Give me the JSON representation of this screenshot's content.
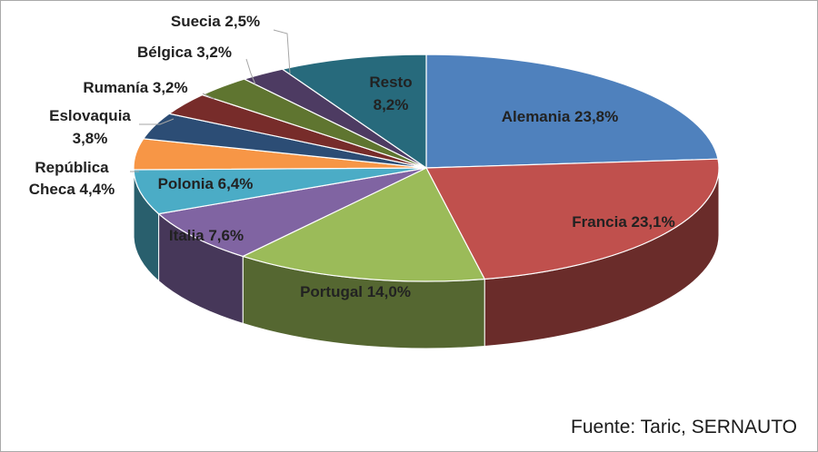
{
  "chart_data": {
    "type": "pie",
    "style": "3d",
    "slices": [
      {
        "name": "Alemania",
        "value": 23.8,
        "label": "Alemania 23,8%",
        "color": "#4F81BD"
      },
      {
        "name": "Francia",
        "value": 23.1,
        "label": "Francia 23,1%",
        "color": "#C0504D"
      },
      {
        "name": "Portugal",
        "value": 14.0,
        "label": "Portugal 14,0%",
        "color": "#9BBB59"
      },
      {
        "name": "Italia",
        "value": 7.6,
        "label": "Italia 7,6%",
        "color": "#8064A2"
      },
      {
        "name": "Polonia",
        "value": 6.4,
        "label": "Polonia 6,4%",
        "color": "#4BACC6"
      },
      {
        "name": "República Checa",
        "value": 4.4,
        "label_lines": [
          "República",
          "Checa 4,4%"
        ],
        "color": "#F79646"
      },
      {
        "name": "Eslovaquia",
        "value": 3.8,
        "label_lines": [
          "Eslovaquia",
          "3,8%"
        ],
        "color": "#2C4D75"
      },
      {
        "name": "Rumanía",
        "value": 3.2,
        "label": "Rumanía 3,2%",
        "color": "#772C2A"
      },
      {
        "name": "Bélgica",
        "value": 3.2,
        "label": "Bélgica 3,2%",
        "color": "#5F7530"
      },
      {
        "name": "Suecia",
        "value": 2.5,
        "label": "Suecia 2,5%",
        "color": "#4D3B62"
      },
      {
        "name": "Resto",
        "value": 8.2,
        "label_lines": [
          "Resto",
          "8,2%"
        ],
        "color": "#276A7C"
      }
    ]
  },
  "source": "Fuente: Taric, SERNAUTO"
}
